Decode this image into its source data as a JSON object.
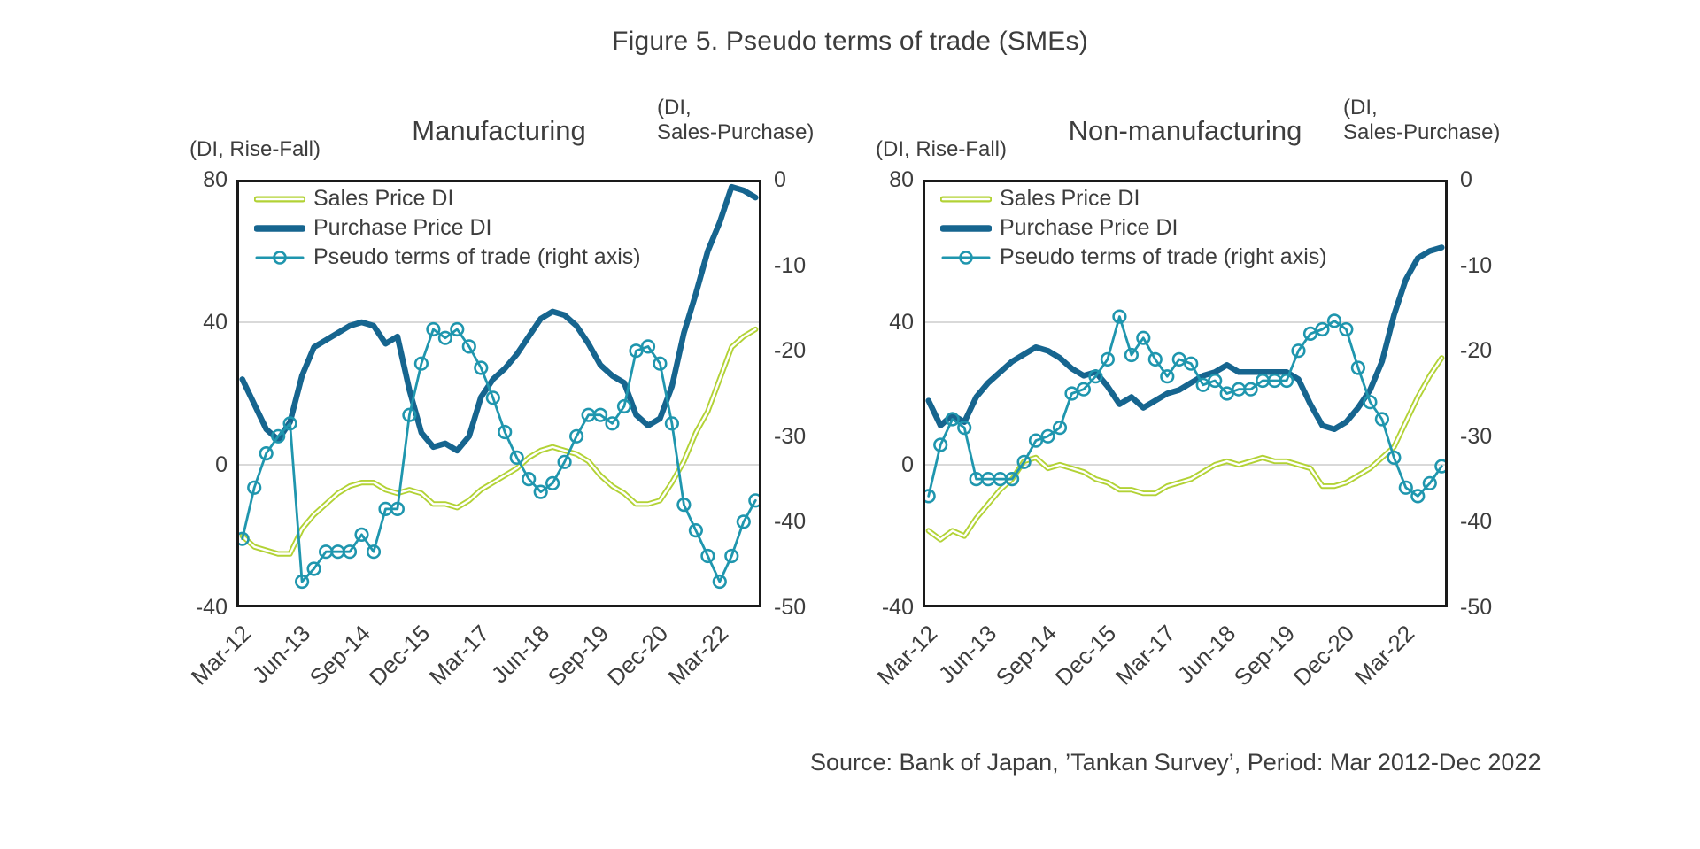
{
  "title": "Figure 5. Pseudo terms of trade (SMEs)",
  "source": "Source: Bank of Japan, ’Tankan Survey’, Period: Mar 2012-Dec 2022",
  "colors": {
    "sales_green": "#b2d235",
    "purchase_blue": "#16658f",
    "pseudo_teal": "#1f96ae",
    "text": "#3d3d3d",
    "gridline": "#d9d9d9",
    "plot_border": "#1a1a1a",
    "background": "#ffffff"
  },
  "chart_data": [
    {
      "id": "manufacturing",
      "type": "line",
      "title": "Manufacturing",
      "left_axis_header": "(DI, Rise-Fall)",
      "right_axis_header_lines": [
        "(DI,",
        "Sales-Purchase)"
      ],
      "left_axis": {
        "min": -40,
        "max": 80,
        "ticks": [
          80,
          40,
          0,
          -40
        ]
      },
      "right_axis": {
        "min": -50,
        "max": 0,
        "ticks": [
          0,
          -10,
          -20,
          -30,
          -40,
          -50
        ]
      },
      "gridlines_left_values": [
        40,
        0
      ],
      "legend": [
        "Sales Price DI",
        "Purchase Price DI",
        "Pseudo terms of trade (right axis)"
      ],
      "x_tick_indices": [
        0,
        5,
        10,
        15,
        20,
        25,
        30,
        35,
        40
      ],
      "x_tick_labels": [
        "Mar-12",
        "Jun-13",
        "Sep-14",
        "Dec-15",
        "Mar-17",
        "Jun-18",
        "Sep-19",
        "Dec-20",
        "Mar-22"
      ],
      "categories": [
        "Mar-12",
        "Jun-12",
        "Sep-12",
        "Dec-12",
        "Mar-13",
        "Jun-13",
        "Sep-13",
        "Dec-13",
        "Mar-14",
        "Jun-14",
        "Sep-14",
        "Dec-14",
        "Mar-15",
        "Jun-15",
        "Sep-15",
        "Dec-15",
        "Mar-16",
        "Jun-16",
        "Sep-16",
        "Dec-16",
        "Mar-17",
        "Jun-17",
        "Sep-17",
        "Dec-17",
        "Mar-18",
        "Jun-18",
        "Sep-18",
        "Dec-18",
        "Mar-19",
        "Jun-19",
        "Sep-19",
        "Dec-19",
        "Mar-20",
        "Jun-20",
        "Sep-20",
        "Dec-20",
        "Mar-21",
        "Jun-21",
        "Sep-21",
        "Dec-21",
        "Mar-22",
        "Jun-22",
        "Sep-22",
        "Dec-22"
      ],
      "series": [
        {
          "name": "Sales Price DI",
          "axis": "left",
          "style": "double-green",
          "values": [
            -20,
            -23,
            -24,
            -25,
            -25,
            -18,
            -14,
            -11,
            -8,
            -6,
            -5,
            -5,
            -7,
            -8,
            -7,
            -8,
            -11,
            -11,
            -12,
            -10,
            -7,
            -5,
            -3,
            -1,
            2,
            4,
            5,
            4,
            3,
            1,
            -3,
            -6,
            -8,
            -11,
            -11,
            -10,
            -5,
            1,
            9,
            15,
            24,
            33,
            36,
            38
          ]
        },
        {
          "name": "Purchase Price DI",
          "axis": "left",
          "style": "thick-blue",
          "values": [
            24,
            17,
            10,
            7,
            12,
            25,
            33,
            35,
            37,
            39,
            40,
            39,
            34,
            36,
            21,
            9,
            5,
            6,
            4,
            8,
            19,
            24,
            27,
            31,
            36,
            41,
            43,
            42,
            39,
            34,
            28,
            25,
            23,
            14,
            11,
            13,
            22,
            37,
            48,
            60,
            68,
            78,
            77,
            75
          ]
        },
        {
          "name": "Pseudo terms of trade (right axis)",
          "axis": "right",
          "style": "teal-circles",
          "values": [
            -42,
            -36,
            -32,
            -30,
            -28.5,
            -47,
            -45.5,
            -43.5,
            -43.5,
            -43.5,
            -41.5,
            -43.5,
            -38.5,
            -38.5,
            -27.5,
            -21.5,
            -17.5,
            -18.5,
            -17.5,
            -19.5,
            -22,
            -25.5,
            -29.5,
            -32.5,
            -35,
            -36.5,
            -35.5,
            -33,
            -30,
            -27.5,
            -27.5,
            -28.5,
            -26.5,
            -20,
            -19.5,
            -21.5,
            -28.5,
            -38,
            -41,
            -44,
            -47,
            -44,
            -40,
            -37.5
          ]
        }
      ]
    },
    {
      "id": "non-manufacturing",
      "type": "line",
      "title": "Non-manufacturing",
      "left_axis_header": "(DI, Rise-Fall)",
      "right_axis_header_lines": [
        "(DI,",
        "Sales-Purchase)"
      ],
      "left_axis": {
        "min": -40,
        "max": 80,
        "ticks": [
          80,
          40,
          0,
          -40
        ]
      },
      "right_axis": {
        "min": -50,
        "max": 0,
        "ticks": [
          0,
          -10,
          -20,
          -30,
          -40,
          -50
        ]
      },
      "gridlines_left_values": [
        40,
        0
      ],
      "legend": [
        "Sales Price DI",
        "Purchase Price DI",
        "Pseudo terms of trade (right axis)"
      ],
      "x_tick_indices": [
        0,
        5,
        10,
        15,
        20,
        25,
        30,
        35,
        40
      ],
      "x_tick_labels": [
        "Mar-12",
        "Jun-13",
        "Sep-14",
        "Dec-15",
        "Mar-17",
        "Jun-18",
        "Sep-19",
        "Dec-20",
        "Mar-22"
      ],
      "categories": [
        "Mar-12",
        "Jun-12",
        "Sep-12",
        "Dec-12",
        "Mar-13",
        "Jun-13",
        "Sep-13",
        "Dec-13",
        "Mar-14",
        "Jun-14",
        "Sep-14",
        "Dec-14",
        "Mar-15",
        "Jun-15",
        "Sep-15",
        "Dec-15",
        "Mar-16",
        "Jun-16",
        "Sep-16",
        "Dec-16",
        "Mar-17",
        "Jun-17",
        "Sep-17",
        "Dec-17",
        "Mar-18",
        "Jun-18",
        "Sep-18",
        "Dec-18",
        "Mar-19",
        "Jun-19",
        "Sep-19",
        "Dec-19",
        "Mar-20",
        "Jun-20",
        "Sep-20",
        "Dec-20",
        "Mar-21",
        "Jun-21",
        "Sep-21",
        "Dec-21",
        "Mar-22",
        "Jun-22",
        "Sep-22",
        "Dec-22"
      ],
      "series": [
        {
          "name": "Sales Price DI",
          "axis": "left",
          "style": "double-green",
          "values": [
            -18.5,
            -21,
            -18.5,
            -20,
            -15,
            -11,
            -7,
            -4,
            1,
            2,
            -1,
            0,
            -1,
            -2,
            -4,
            -5,
            -7,
            -7,
            -8,
            -8,
            -6,
            -5,
            -4,
            -2,
            0,
            1,
            0,
            1,
            2,
            1,
            1,
            0,
            -1,
            -6,
            -6,
            -5,
            -3,
            -1,
            2,
            5,
            12,
            19,
            25,
            30
          ]
        },
        {
          "name": "Purchase Price DI",
          "axis": "left",
          "style": "thick-blue",
          "values": [
            18,
            11,
            14,
            12,
            19,
            23,
            26,
            29,
            31,
            33,
            32,
            30,
            27,
            25,
            26,
            22,
            17,
            19,
            16,
            18,
            20,
            21,
            23,
            25,
            26,
            28,
            26,
            26,
            26,
            26,
            26,
            24,
            17,
            11,
            10,
            12,
            16,
            21,
            29,
            42,
            52,
            58,
            60,
            61
          ]
        },
        {
          "name": "Pseudo terms of trade (right axis)",
          "axis": "right",
          "style": "teal-circles",
          "values": [
            -37,
            -31,
            -28,
            -29,
            -35,
            -35,
            -35,
            -35,
            -33,
            -30.5,
            -30,
            -29,
            -25,
            -24.5,
            -23,
            -21,
            -16,
            -20.5,
            -18.5,
            -21,
            -23,
            -21,
            -21.5,
            -24,
            -23.5,
            -25,
            -24.5,
            -24.5,
            -23.5,
            -23.5,
            -23.5,
            -20,
            -18,
            -17.5,
            -16.5,
            -17.5,
            -22,
            -26,
            -28,
            -32.5,
            -36,
            -37,
            -35.5,
            -33.5
          ]
        }
      ]
    }
  ]
}
